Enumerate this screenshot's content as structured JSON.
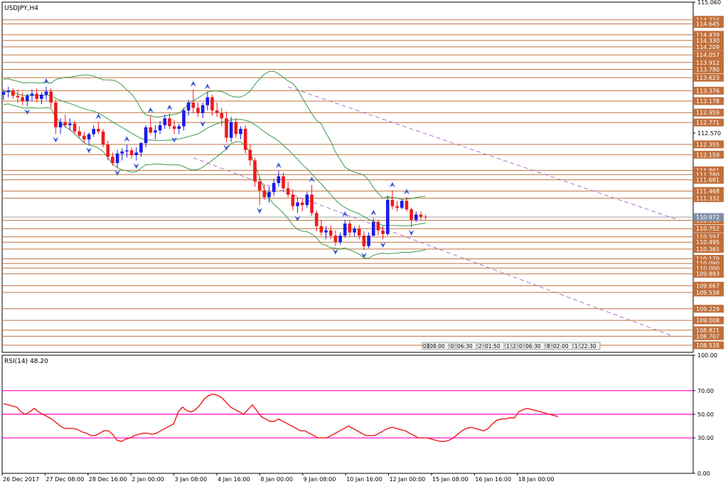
{
  "chart_data": [
    {
      "type": "candlestick",
      "title": "USDJPY,H4",
      "ylim": [
        108.4,
        115.06
      ],
      "price_tick_labels": [
        "115.060",
        "112.570"
      ],
      "current_price": "110.972",
      "horizontal_levels": [
        "114.724",
        "114.645",
        "114.439",
        "114.330",
        "114.209",
        "114.057",
        "113.912",
        "113.780",
        "113.623",
        "113.376",
        "113.178",
        "112.959",
        "112.771",
        "112.355",
        "112.159",
        "111.861",
        "111.780",
        "111.681",
        "111.468",
        "111.332",
        "110.972",
        "110.910",
        "110.752",
        "110.597",
        "110.495",
        "110.365",
        "110.179",
        "110.090",
        "110.000",
        "109.893",
        "109.667",
        "109.538",
        "109.229",
        "109.008",
        "108.821",
        "108.707",
        "108.535"
      ],
      "x_labels": [
        "26 Dec 2017",
        "27 Dec 08:00",
        "28 Dec 16:00",
        "2 Jan 00:00",
        "3 Jan 08:00",
        "4 Jan 16:00",
        "8 Jan 00:00",
        "9 Jan 08:00",
        "10 Jan 16:00",
        "12 Jan 00:00",
        "15 Jan 08:00",
        "16 Jan 16:00",
        "18 Jan 00:00"
      ],
      "time_tags": [
        "01",
        "08:00",
        "0",
        "06:30",
        "2",
        "01:50",
        "1",
        "2",
        "0",
        "06:30",
        "8",
        "02:00",
        "1",
        "22:30"
      ],
      "ohlc": [
        [
          113.3,
          113.4,
          113.2,
          113.35
        ],
        [
          113.35,
          113.45,
          113.25,
          113.38
        ],
        [
          113.38,
          113.42,
          113.22,
          113.28
        ],
        [
          113.28,
          113.4,
          113.15,
          113.25
        ],
        [
          113.25,
          113.35,
          113.1,
          113.18
        ],
        [
          113.18,
          113.32,
          113.08,
          113.28
        ],
        [
          113.28,
          113.4,
          113.18,
          113.32
        ],
        [
          113.32,
          113.42,
          113.15,
          113.22
        ],
        [
          113.22,
          113.35,
          113.12,
          113.3
        ],
        [
          113.3,
          113.45,
          113.2,
          113.36
        ],
        [
          113.36,
          113.42,
          113.05,
          113.15
        ],
        [
          113.15,
          113.2,
          112.55,
          112.68
        ],
        [
          112.68,
          112.85,
          112.55,
          112.78
        ],
        [
          112.78,
          112.92,
          112.68,
          112.72
        ],
        [
          112.72,
          112.85,
          112.62,
          112.75
        ],
        [
          112.75,
          112.8,
          112.55,
          112.6
        ],
        [
          112.6,
          112.7,
          112.48,
          112.52
        ],
        [
          112.52,
          112.6,
          112.38,
          112.45
        ],
        [
          112.45,
          112.58,
          112.35,
          112.55
        ],
        [
          112.55,
          112.72,
          112.5,
          112.65
        ],
        [
          112.65,
          112.78,
          112.55,
          112.6
        ],
        [
          112.6,
          112.65,
          112.3,
          112.35
        ],
        [
          112.35,
          112.42,
          112.05,
          112.12
        ],
        [
          112.12,
          112.2,
          111.95,
          112.0
        ],
        [
          112.0,
          112.25,
          111.92,
          112.18
        ],
        [
          112.18,
          112.28,
          112.05,
          112.22
        ],
        [
          112.22,
          112.35,
          112.1,
          112.24
        ],
        [
          112.24,
          112.3,
          112.08,
          112.15
        ],
        [
          112.15,
          112.3,
          112.05,
          112.2
        ],
        [
          112.2,
          112.4,
          112.12,
          112.38
        ],
        [
          112.38,
          112.72,
          112.3,
          112.68
        ],
        [
          112.68,
          112.9,
          112.55,
          112.58
        ],
        [
          112.58,
          112.72,
          112.45,
          112.62
        ],
        [
          112.62,
          112.8,
          112.55,
          112.72
        ],
        [
          112.72,
          112.92,
          112.65,
          112.85
        ],
        [
          112.85,
          112.95,
          112.65,
          112.7
        ],
        [
          112.7,
          112.82,
          112.55,
          112.65
        ],
        [
          112.65,
          112.75,
          112.55,
          112.7
        ],
        [
          112.7,
          113.05,
          112.62,
          113.0
        ],
        [
          113.0,
          113.2,
          112.9,
          113.15
        ],
        [
          113.15,
          113.4,
          112.95,
          113.05
        ],
        [
          113.05,
          113.15,
          112.88,
          112.95
        ],
        [
          112.95,
          113.15,
          112.85,
          113.1
        ],
        [
          113.1,
          113.35,
          113.0,
          113.25
        ],
        [
          113.25,
          113.3,
          112.9,
          113.0
        ],
        [
          113.0,
          113.15,
          112.88,
          112.95
        ],
        [
          112.95,
          113.05,
          112.7,
          112.85
        ],
        [
          112.85,
          112.98,
          112.4,
          112.48
        ],
        [
          112.48,
          112.88,
          112.4,
          112.78
        ],
        [
          112.78,
          112.85,
          112.48,
          112.55
        ],
        [
          112.55,
          112.7,
          112.45,
          112.65
        ],
        [
          112.65,
          112.72,
          112.18,
          112.25
        ],
        [
          112.25,
          112.35,
          111.95,
          112.05
        ],
        [
          112.05,
          112.1,
          111.55,
          111.65
        ],
        [
          111.65,
          111.72,
          111.2,
          111.48
        ],
        [
          111.48,
          111.6,
          111.3,
          111.35
        ],
        [
          111.35,
          111.55,
          111.25,
          111.45
        ],
        [
          111.45,
          111.7,
          111.38,
          111.62
        ],
        [
          111.62,
          111.85,
          111.55,
          111.75
        ],
        [
          111.75,
          111.82,
          111.45,
          111.52
        ],
        [
          111.52,
          111.65,
          111.35,
          111.4
        ],
        [
          111.4,
          111.5,
          111.1,
          111.18
        ],
        [
          111.18,
          111.35,
          111.05,
          111.25
        ],
        [
          111.25,
          111.32,
          111.08,
          111.2
        ],
        [
          111.2,
          111.45,
          111.15,
          111.4
        ],
        [
          111.4,
          111.58,
          111.0,
          111.05
        ],
        [
          111.05,
          111.1,
          110.7,
          110.8
        ],
        [
          110.8,
          110.92,
          110.62,
          110.68
        ],
        [
          110.68,
          110.8,
          110.55,
          110.72
        ],
        [
          110.72,
          110.82,
          110.55,
          110.62
        ],
        [
          110.62,
          110.72,
          110.42,
          110.5
        ],
        [
          110.5,
          110.68,
          110.45,
          110.62
        ],
        [
          110.62,
          110.92,
          110.58,
          110.85
        ],
        [
          110.85,
          110.92,
          110.6,
          110.68
        ],
        [
          110.68,
          110.8,
          110.6,
          110.75
        ],
        [
          110.75,
          110.82,
          110.55,
          110.62
        ],
        [
          110.62,
          110.7,
          110.35,
          110.42
        ],
        [
          110.42,
          110.68,
          110.38,
          110.62
        ],
        [
          110.62,
          110.95,
          110.6,
          110.88
        ],
        [
          110.88,
          110.92,
          110.62,
          110.72
        ],
        [
          110.72,
          110.8,
          110.55,
          110.65
        ],
        [
          110.65,
          111.38,
          110.62,
          111.3
        ],
        [
          111.3,
          111.48,
          111.12,
          111.18
        ],
        [
          111.18,
          111.28,
          111.08,
          111.15
        ],
        [
          111.15,
          111.32,
          111.12,
          111.28
        ],
        [
          111.28,
          111.35,
          111.08,
          111.12
        ],
        [
          111.12,
          111.15,
          110.78,
          110.92
        ],
        [
          110.92,
          111.08,
          110.88,
          111.02
        ],
        [
          111.02,
          111.08,
          110.92,
          110.98
        ],
        [
          110.98,
          111.02,
          110.92,
          110.97
        ]
      ]
    },
    {
      "type": "line",
      "title": "RSI(14) 48.20",
      "ylim": [
        0,
        100
      ],
      "y_tick_labels": [
        "100.00",
        "70.00",
        "50.00",
        "30.00",
        "0.00"
      ],
      "levels": [
        70,
        50,
        30
      ],
      "values": [
        59,
        58,
        57,
        56,
        52,
        50,
        52,
        55,
        52,
        50,
        48,
        46,
        43,
        40,
        38,
        38,
        38,
        37,
        35,
        34,
        32,
        32,
        34,
        36,
        36,
        33,
        28,
        27,
        29,
        30,
        32,
        33,
        34,
        34,
        33,
        34,
        36,
        38,
        40,
        42,
        52,
        56,
        53,
        52,
        54,
        58,
        63,
        66,
        67,
        66,
        64,
        60,
        56,
        54,
        52,
        50,
        54,
        58,
        53,
        48,
        46,
        44,
        44,
        46,
        44,
        42,
        40,
        38,
        36,
        36,
        34,
        32,
        30,
        30,
        30,
        32,
        34,
        36,
        38,
        40,
        38,
        36,
        34,
        32,
        32,
        32,
        34,
        36,
        38,
        39,
        38,
        37,
        36,
        34,
        32,
        30,
        30,
        30,
        29,
        28,
        27,
        27,
        28,
        30,
        33,
        36,
        38,
        39,
        38,
        37,
        36,
        38,
        42,
        45,
        46,
        46,
        47,
        47,
        52,
        54,
        55,
        54,
        53,
        52,
        51,
        50,
        49,
        48
      ]
    }
  ]
}
